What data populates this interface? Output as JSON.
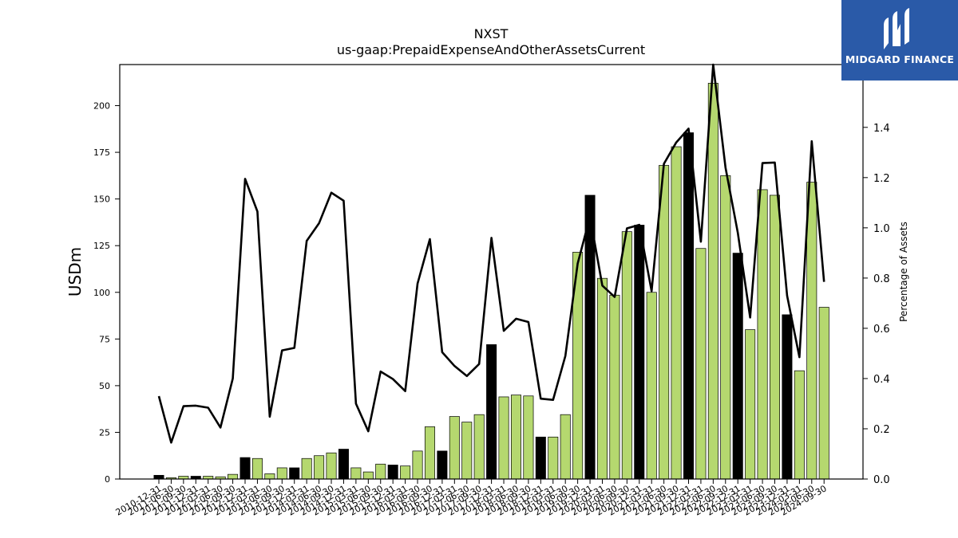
{
  "chart_data": {
    "type": "bar",
    "title": "NXST",
    "subtitle": "us-gaap:PrepaidExpenseAndOtherAssetsCurrent",
    "ylabel": "USDm",
    "y2label": "Percentage of Assets",
    "ylim": [
      0,
      222
    ],
    "y2lim": [
      0,
      1.65
    ],
    "yticks": [
      0,
      25,
      50,
      75,
      100,
      125,
      150,
      175,
      200
    ],
    "y2ticks": [
      0.0,
      0.2,
      0.4,
      0.6,
      0.8,
      1.0,
      1.2,
      1.4
    ],
    "y2tick_labels": [
      "0.0",
      "0.2",
      "0.4",
      "0.6",
      "0.8",
      "1.0",
      "1.2",
      "1.4"
    ],
    "grid": false,
    "colors": {
      "bar_quarter": "#b5d86f",
      "bar_year_end": "#000000",
      "line": "#000000"
    },
    "categories": [
      "2010-12-31",
      "2011-06-30",
      "2011-09-30",
      "2011-12-31",
      "2012-03-31",
      "2012-06-30",
      "2012-09-30",
      "2012-12-31",
      "2013-03-31",
      "2013-06-30",
      "2013-09-30",
      "2013-12-31",
      "2014-03-31",
      "2014-06-30",
      "2014-09-30",
      "2014-12-31",
      "2015-03-31",
      "2015-06-30",
      "2015-09-30",
      "2015-12-31",
      "2016-03-31",
      "2016-06-30",
      "2016-09-30",
      "2016-12-31",
      "2017-03-31",
      "2017-06-30",
      "2017-09-30",
      "2017-12-31",
      "2018-03-31",
      "2018-06-30",
      "2018-09-30",
      "2018-12-31",
      "2019-03-31",
      "2019-06-30",
      "2019-09-30",
      "2019-12-31",
      "2020-03-31",
      "2020-06-30",
      "2020-09-30",
      "2020-12-31",
      "2021-03-31",
      "2021-06-30",
      "2021-09-30",
      "2021-12-31",
      "2022-03-31",
      "2022-06-30",
      "2022-09-30",
      "2022-12-31",
      "2023-03-31",
      "2023-06-30",
      "2023-09-30",
      "2023-12-31",
      "2024-03-31",
      "2024-06-30",
      "2024-09-30"
    ],
    "series": [
      {
        "kind": "bar",
        "values": [
          2,
          0.7,
          1.5,
          1.5,
          1.5,
          1.2,
          2.5,
          11.5,
          11,
          2.8,
          6,
          6,
          11,
          12.5,
          14,
          16,
          6,
          3.8,
          8,
          7.5,
          7,
          15,
          28,
          15,
          33.5,
          30.5,
          34.5,
          72,
          44,
          45,
          44.5,
          22.5,
          22.5,
          34.5,
          121.5,
          152,
          107.5,
          98.5,
          132.5,
          136,
          100,
          168,
          178,
          185.5,
          123.5,
          212,
          162.5,
          121,
          80,
          155,
          152,
          88,
          58,
          159,
          92
        ],
        "year_end": [
          1,
          0,
          0,
          1,
          0,
          0,
          0,
          1,
          0,
          0,
          0,
          1,
          0,
          0,
          0,
          1,
          0,
          0,
          0,
          1,
          0,
          0,
          0,
          1,
          0,
          0,
          0,
          1,
          0,
          0,
          0,
          1,
          0,
          0,
          0,
          1,
          0,
          0,
          0,
          1,
          0,
          0,
          0,
          1,
          0,
          0,
          0,
          1,
          0,
          0,
          0,
          1,
          0,
          0,
          0
        ]
      },
      {
        "kind": "line",
        "axis": "right",
        "values": [
          0.33,
          0.145,
          0.29,
          0.292,
          0.284,
          0.205,
          0.4,
          1.195,
          1.065,
          0.248,
          0.512,
          0.522,
          0.948,
          1.018,
          1.14,
          1.108,
          0.3,
          0.19,
          0.428,
          0.398,
          0.35,
          0.778,
          0.955,
          0.505,
          0.45,
          0.41,
          0.458,
          0.96,
          0.59,
          0.638,
          0.625,
          0.32,
          0.315,
          0.49,
          0.858,
          1.045,
          0.77,
          0.725,
          0.998,
          1.012,
          0.748,
          1.255,
          1.34,
          1.395,
          0.945,
          1.65,
          1.24,
          0.98,
          0.643,
          1.258,
          1.26,
          0.73,
          0.485,
          1.345,
          0.785
        ]
      }
    ]
  },
  "logo": {
    "text": "MIDGARD FINANCE",
    "colors": {
      "bg": "#2a5aa8",
      "fg": "#ffffff"
    }
  }
}
